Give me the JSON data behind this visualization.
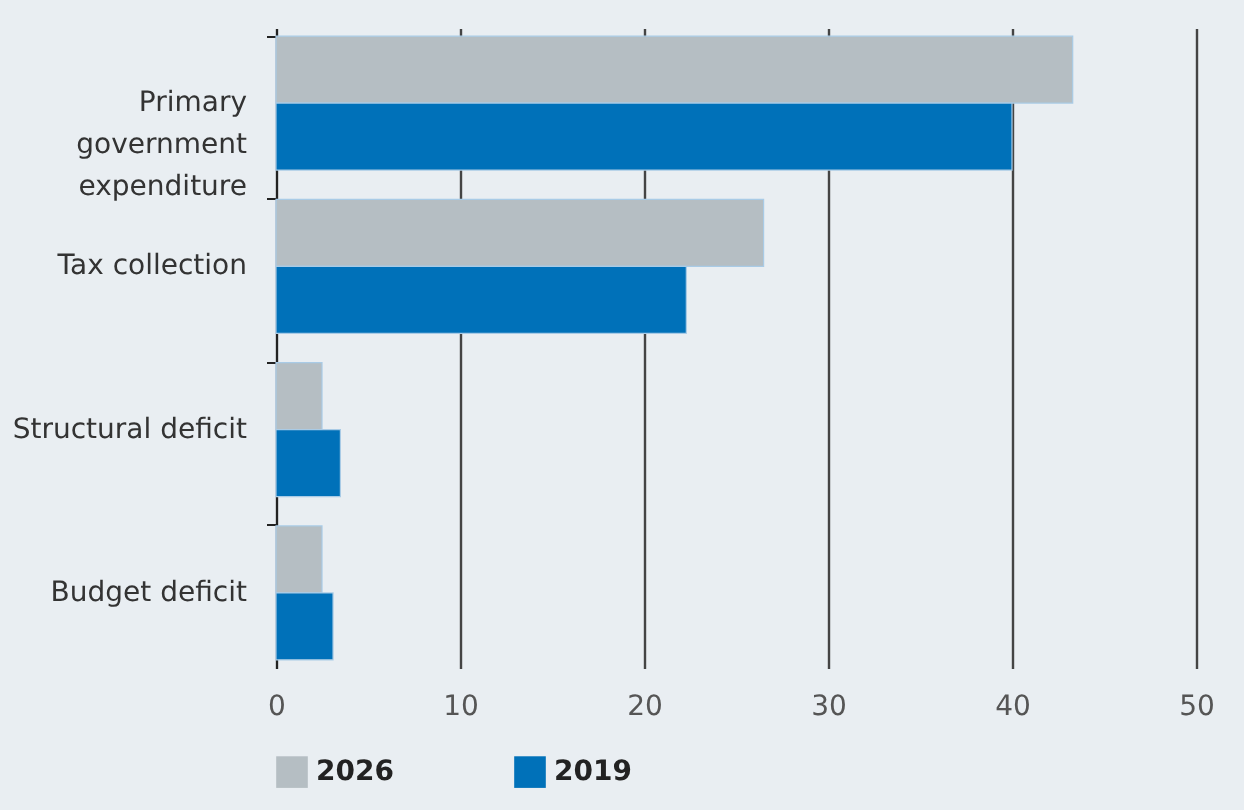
{
  "chart_data": {
    "type": "bar",
    "orientation": "horizontal",
    "categories": [
      "Primary government expenditure",
      "Tax collection",
      "Structural deficit",
      "Budget deficit"
    ],
    "series": [
      {
        "name": "2026",
        "color": "#b5bec3",
        "values": [
          43.3,
          26.5,
          2.5,
          2.5
        ]
      },
      {
        "name": "2019",
        "color": "#0071b9",
        "values": [
          40,
          22.3,
          3.5,
          3.1
        ]
      }
    ],
    "xlim": [
      0,
      50
    ],
    "xticks": [
      0,
      10,
      20,
      30,
      40,
      50
    ],
    "grid": "x",
    "legend": "bottom"
  }
}
